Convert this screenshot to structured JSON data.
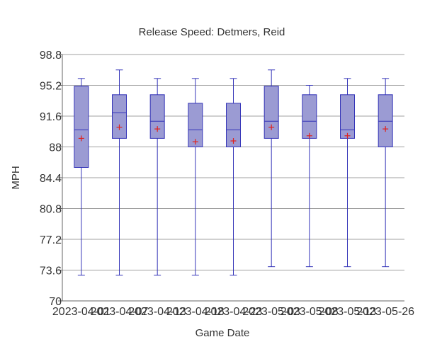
{
  "chart_data": {
    "type": "box",
    "title": "Release Speed: Detmers, Reid",
    "xlabel": "Game Date",
    "ylabel": "MPH",
    "ylim": [
      70,
      98.8
    ],
    "yticks": [
      70,
      73.6,
      77.2,
      80.8,
      84.4,
      88,
      91.6,
      95.2,
      98.8
    ],
    "ytick_labels": [
      "70",
      "73.6",
      "77.2",
      "80.8",
      "84.4",
      "88",
      "91.6",
      "95.2",
      "98.8"
    ],
    "grid": true,
    "colors": {
      "box_fill": "#9b9bd3",
      "box_stroke": "#3434b8",
      "mean_marker": "#e0201b",
      "grid": "#a0a0a0",
      "axis": "#666666"
    },
    "categories": [
      "2023-04-01",
      "2023-04-07",
      "2023-04-13",
      "2023-04-18",
      "2023-04-23",
      "2023-05-03",
      "2023-05-08",
      "2023-05-13",
      "2023-05-26"
    ],
    "boxes": [
      {
        "min": 73.0,
        "q1": 85.6,
        "median": 90.0,
        "q3": 95.1,
        "max": 96.0,
        "mean": 89.0
      },
      {
        "min": 73.0,
        "q1": 89.0,
        "median": 92.0,
        "q3": 94.1,
        "max": 97.0,
        "mean": 90.3
      },
      {
        "min": 73.0,
        "q1": 89.0,
        "median": 91.0,
        "q3": 94.1,
        "max": 96.0,
        "mean": 90.1
      },
      {
        "min": 73.0,
        "q1": 88.0,
        "median": 90.0,
        "q3": 93.1,
        "max": 96.0,
        "mean": 88.6
      },
      {
        "min": 73.0,
        "q1": 88.0,
        "median": 90.0,
        "q3": 93.1,
        "max": 96.0,
        "mean": 88.7
      },
      {
        "min": 74.0,
        "q1": 89.0,
        "median": 91.0,
        "q3": 95.1,
        "max": 97.0,
        "mean": 90.3
      },
      {
        "min": 74.0,
        "q1": 89.0,
        "median": 91.0,
        "q3": 94.1,
        "max": 95.2,
        "mean": 89.3
      },
      {
        "min": 74.0,
        "q1": 89.0,
        "median": 90.0,
        "q3": 94.1,
        "max": 96.0,
        "mean": 89.3
      },
      {
        "min": 74.0,
        "q1": 88.0,
        "median": 91.0,
        "q3": 94.1,
        "max": 96.0,
        "mean": 90.1
      }
    ]
  }
}
